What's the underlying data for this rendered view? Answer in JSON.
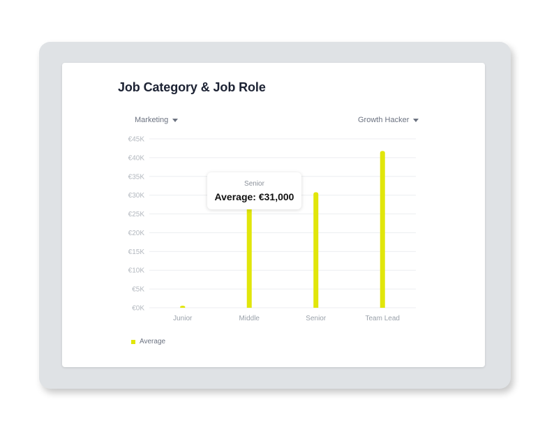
{
  "title": "Job Category & Job Role",
  "dropdowns": {
    "category": "Marketing",
    "role": "Growth Hacker"
  },
  "tooltip": {
    "category": "Senior",
    "text": "Average: €31,000"
  },
  "colors": {
    "bar": "#e1e60a",
    "grid": "#eceef0",
    "frame": "#dfe2e5"
  },
  "chart_data": {
    "type": "bar",
    "categories": [
      "Junior",
      "Middle",
      "Senior",
      "Team Lead"
    ],
    "series": [
      {
        "name": "Average",
        "values": [
          400,
          27000,
          30800,
          41800
        ]
      }
    ],
    "ylim": [
      0,
      45000
    ],
    "yticks": [
      0,
      5000,
      10000,
      15000,
      20000,
      25000,
      30000,
      35000,
      40000,
      45000
    ],
    "ytick_labels": [
      "€0K",
      "€5K",
      "€10K",
      "€15K",
      "€20K",
      "€25K",
      "€30K",
      "€35K",
      "€40K",
      "€45K"
    ],
    "grid": true,
    "legend_position": "bottom-left"
  }
}
